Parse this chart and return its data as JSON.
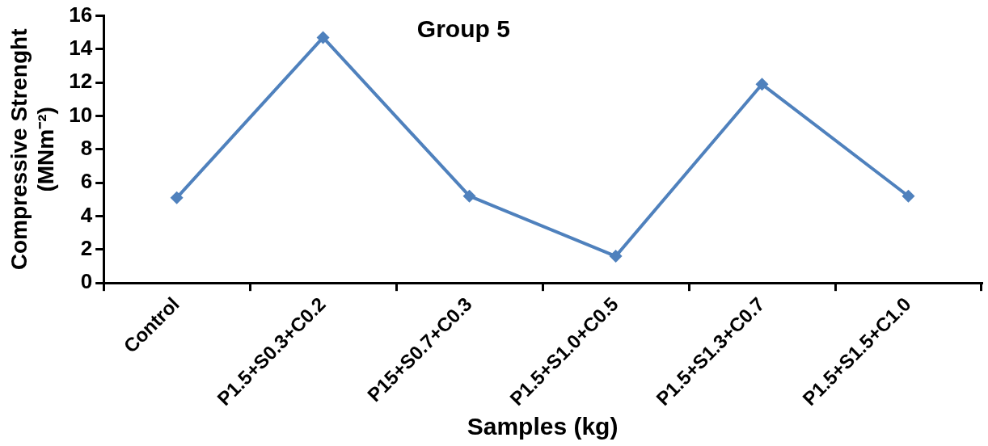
{
  "chart_data": {
    "type": "line",
    "title": "Group 5",
    "xlabel": "Samples (kg)",
    "ylabel": "Compressive Strenght\n(MNm⁻²)",
    "categories": [
      "Control",
      "P1.5+S0.3+C0.2",
      "P15+S0.7+C0.3",
      "P1.5+S1.0+C0.5",
      "P1.5+S1.3+C0.7",
      "P1.5+S1.5+C1.0"
    ],
    "series": [
      {
        "color": "#4f81bd",
        "values": [
          5.1,
          14.7,
          5.2,
          1.6,
          11.9,
          5.2
        ]
      }
    ],
    "ylim": [
      0,
      16
    ],
    "yticks": [
      0,
      2,
      4,
      6,
      8,
      10,
      12,
      14,
      16
    ],
    "grid": false,
    "legend": false,
    "marker": "diamond",
    "line_style": "solid"
  }
}
